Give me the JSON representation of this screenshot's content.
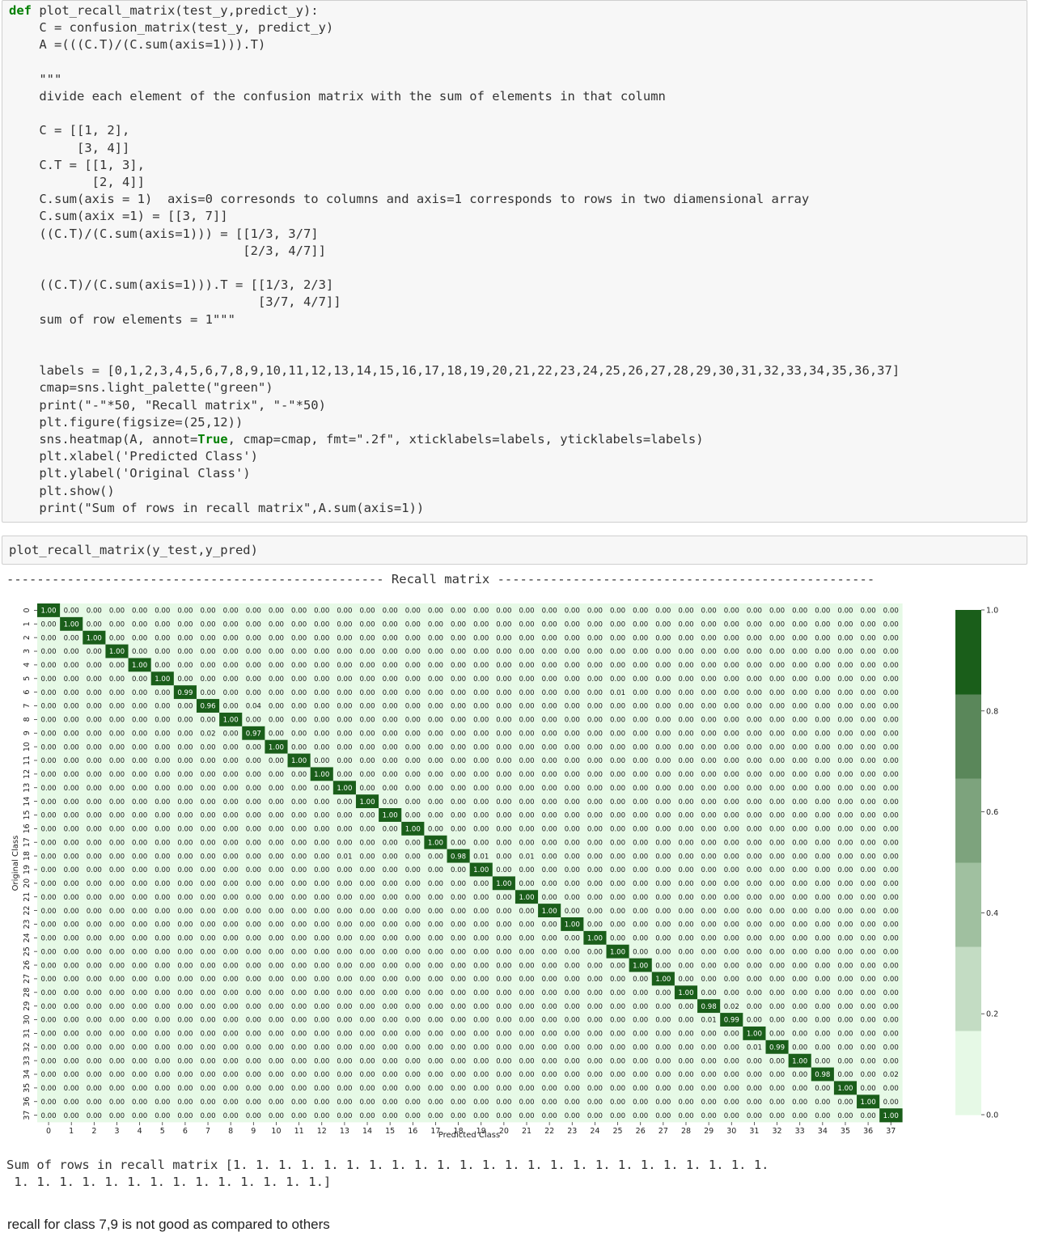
{
  "code_cell": {
    "lines": [
      "def plot_recall_matrix(test_y,predict_y):",
      "    C = confusion_matrix(test_y, predict_y)",
      "    A =(((C.T)/(C.sum(axis=1))).T)",
      "",
      "    \"\"\"",
      "    divide each element of the confusion matrix with the sum of elements in that column",
      "",
      "    C = [[1, 2],",
      "         [3, 4]]",
      "    C.T = [[1, 3],",
      "           [2, 4]]",
      "    C.sum(axis = 1)  axis=0 corresonds to columns and axis=1 corresponds to rows in two diamensional array",
      "    C.sum(axix =1) = [[3, 7]]",
      "    ((C.T)/(C.sum(axis=1))) = [[1/3, 3/7]",
      "                               [2/3, 4/7]]",
      "",
      "    ((C.T)/(C.sum(axis=1))).T = [[1/3, 2/3]",
      "                                 [3/7, 4/7]]",
      "    sum of row elements = 1\"\"\"",
      "",
      "",
      "    labels = [0,1,2,3,4,5,6,7,8,9,10,11,12,13,14,15,16,17,18,19,20,21,22,23,24,25,26,27,28,29,30,31,32,33,34,35,36,37]",
      "    cmap=sns.light_palette(\"green\")",
      "    print(\"-\"*50, \"Recall matrix\", \"-\"*50)",
      "    plt.figure(figsize=(25,12))",
      "    sns.heatmap(A, annot=True, cmap=cmap, fmt=\".2f\", xticklabels=labels, yticklabels=labels)",
      "    plt.xlabel('Predicted Class')",
      "    plt.ylabel('Original Class')",
      "    plt.show()",
      "    print(\"Sum of rows in recall matrix\",A.sum(axis=1))"
    ]
  },
  "call_cell": {
    "code": "plot_recall_matrix(y_test,y_pred)"
  },
  "output": {
    "separator_line": "-------------------------------------------------- Recall matrix --------------------------------------------------",
    "sum_line_1": "Sum of rows in recall matrix [1. 1. 1. 1. 1. 1. 1. 1. 1. 1. 1. 1. 1. 1. 1. 1. 1. 1. 1. 1. 1. 1. 1. 1.",
    "sum_line_2": " 1. 1. 1. 1. 1. 1. 1. 1. 1. 1. 1. 1. 1. 1.]"
  },
  "note": "recall for class 7,9 is not good as compared to others",
  "chart_data": {
    "type": "heatmap",
    "xlabel": "Predicted Class",
    "ylabel": "Original Class",
    "x_labels": [
      "0",
      "1",
      "2",
      "3",
      "4",
      "5",
      "6",
      "7",
      "8",
      "9",
      "10",
      "11",
      "12",
      "13",
      "14",
      "15",
      "16",
      "17",
      "18",
      "19",
      "20",
      "21",
      "22",
      "23",
      "24",
      "25",
      "26",
      "27",
      "28",
      "29",
      "30",
      "31",
      "32",
      "33",
      "34",
      "35",
      "36",
      "37"
    ],
    "y_labels": [
      "0",
      "1",
      "2",
      "3",
      "4",
      "5",
      "6",
      "7",
      "8",
      "9",
      "10",
      "11",
      "12",
      "13",
      "14",
      "15",
      "16",
      "17",
      "18",
      "19",
      "20",
      "21",
      "22",
      "23",
      "24",
      "25",
      "26",
      "27",
      "28",
      "29",
      "30",
      "31",
      "32",
      "33",
      "34",
      "35",
      "36",
      "37"
    ],
    "annotation_format": ".2f",
    "diagonal": [
      1.0,
      1.0,
      1.0,
      1.0,
      1.0,
      1.0,
      0.99,
      0.96,
      1.0,
      0.97,
      1.0,
      1.0,
      1.0,
      1.0,
      1.0,
      1.0,
      1.0,
      1.0,
      0.98,
      1.0,
      1.0,
      1.0,
      1.0,
      1.0,
      1.0,
      1.0,
      1.0,
      1.0,
      1.0,
      0.98,
      0.99,
      1.0,
      0.99,
      1.0,
      0.98,
      1.0,
      1.0,
      1.0
    ],
    "off_diagonal": [
      {
        "row": 6,
        "col": 25,
        "value": 0.01
      },
      {
        "row": 7,
        "col": 9,
        "value": 0.04
      },
      {
        "row": 9,
        "col": 7,
        "value": 0.02
      },
      {
        "row": 18,
        "col": 13,
        "value": 0.01
      },
      {
        "row": 18,
        "col": 19,
        "value": 0.01
      },
      {
        "row": 18,
        "col": 21,
        "value": 0.01
      },
      {
        "row": 29,
        "col": 30,
        "value": 0.02
      },
      {
        "row": 30,
        "col": 29,
        "value": 0.01
      },
      {
        "row": 32,
        "col": 31,
        "value": 0.01
      },
      {
        "row": 34,
        "col": 37,
        "value": 0.02
      }
    ],
    "default_value": 0.0,
    "colorbar": {
      "ticks": [
        0.0,
        0.2,
        0.4,
        0.6,
        0.8,
        1.0
      ],
      "range": [
        0.0,
        1.0
      ],
      "levels": 6
    },
    "colors": [
      "#e6f9e6",
      "#c3dcc3",
      "#a0c0a0",
      "#7da37d",
      "#5a875a",
      "#1a5e1a"
    ]
  }
}
